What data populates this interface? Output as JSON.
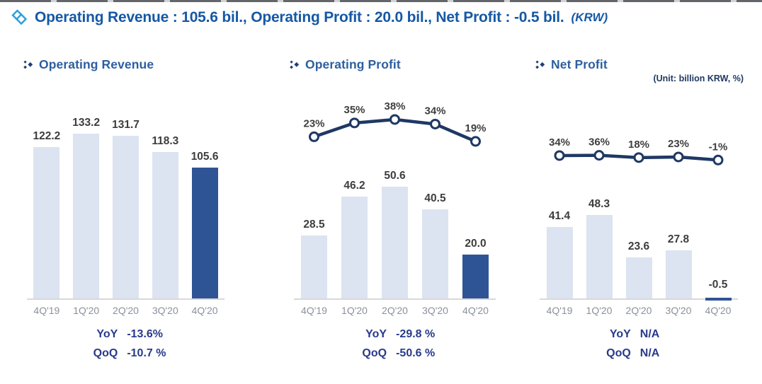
{
  "page": {
    "header": {
      "summary": "Operating Revenue : 105.6 bil., Operating Profit : 20.0 bil., Net Profit : -0.5 bil.",
      "currency_note": "(KRW)"
    },
    "unit_note": "(Unit: billion KRW, %)"
  },
  "colors": {
    "header_blue": "#1558a5",
    "title_blue": "#2d5f9f",
    "bar_light": "#dce3f1",
    "bar_highlight": "#2f5496",
    "line_navy": "#1f3864",
    "value_label": "#3d3d3d",
    "axis_line": "#d9d9d9",
    "x_label_gray": "#8b909b",
    "metric_navy": "#283a8c",
    "accent_cyan": "#2d9fd8"
  },
  "chart_data": [
    {
      "type": "bar",
      "title": "Operating Revenue",
      "categories": [
        "4Q'19",
        "1Q'20",
        "2Q'20",
        "3Q'20",
        "4Q'20"
      ],
      "series": [
        {
          "name": "amount",
          "type": "bar",
          "values": [
            122.2,
            133.2,
            131.7,
            118.3,
            105.6
          ]
        }
      ],
      "highlight_index": 4,
      "ylabel": "billion KRW",
      "ylim": [
        0,
        140
      ],
      "grid": false,
      "legend": "none",
      "metrics": [
        {
          "label": "YoY",
          "value": "-13.6%"
        },
        {
          "label": "QoQ",
          "value": "-10.7 %"
        }
      ]
    },
    {
      "type": "bar+line",
      "title": "Operating Profit",
      "categories": [
        "4Q'19",
        "1Q'20",
        "2Q'20",
        "3Q'20",
        "4Q'20"
      ],
      "series": [
        {
          "name": "amount",
          "type": "bar",
          "values": [
            28.5,
            46.2,
            50.6,
            40.5,
            20.0
          ]
        },
        {
          "name": "pct_line",
          "type": "line",
          "values": [
            23,
            35,
            38,
            34,
            19
          ],
          "unit": "%"
        }
      ],
      "highlight_index": 4,
      "ylabel": "billion KRW",
      "ylim": [
        0,
        60
      ],
      "grid": false,
      "legend": "none",
      "metrics": [
        {
          "label": "YoY",
          "value": "-29.8 %"
        },
        {
          "label": "QoQ",
          "value": "-50.6 %"
        }
      ]
    },
    {
      "type": "bar+line",
      "title": "Net Profit",
      "categories": [
        "4Q'19",
        "1Q'20",
        "2Q'20",
        "3Q'20",
        "4Q'20"
      ],
      "series": [
        {
          "name": "amount",
          "type": "bar",
          "values": [
            41.4,
            48.3,
            23.6,
            27.8,
            -0.5
          ]
        },
        {
          "name": "pct_line",
          "type": "line",
          "values": [
            34,
            36,
            18,
            23,
            -1
          ],
          "unit": "%"
        }
      ],
      "highlight_index": 4,
      "ylabel": "billion KRW",
      "ylim": [
        0,
        55
      ],
      "grid": false,
      "legend": "none",
      "metrics": [
        {
          "label": "YoY",
          "value": "N/A"
        },
        {
          "label": "QoQ",
          "value": "N/A"
        }
      ]
    }
  ]
}
